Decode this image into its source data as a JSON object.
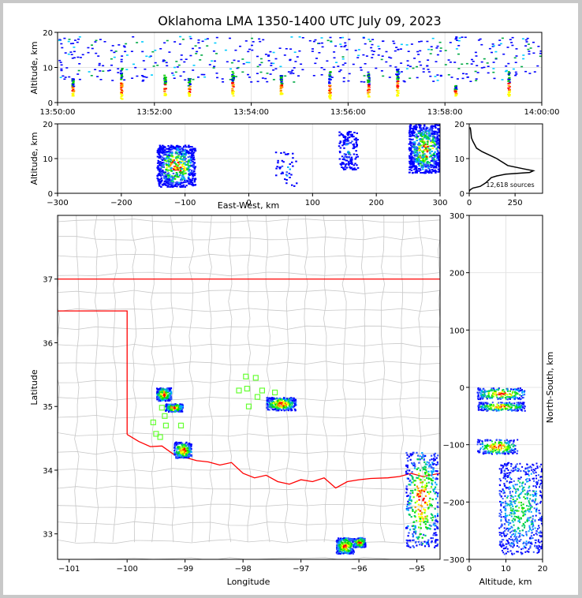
{
  "chart_data": [
    {
      "type": "scatter",
      "panel": "time-altitude",
      "title": "Oklahoma LMA 1350-1400 UTC July 09, 2023",
      "ylabel": "Altitude, km",
      "xlabel": "",
      "xlim": [
        "13:50:00",
        "14:00:00"
      ],
      "ylim": [
        0,
        20
      ],
      "x_ticks": [
        "13:50:00",
        "13:52:00",
        "13:54:00",
        "13:56:00",
        "13:58:00",
        "14:00:00"
      ],
      "y_ticks": [
        "0",
        "10",
        "20"
      ],
      "grid": true,
      "burst_times_min": [
        0.3,
        1.3,
        2.2,
        2.7,
        3.6,
        4.6,
        5.6,
        6.4,
        7.0,
        8.2,
        9.3
      ],
      "burst_base_km": [
        [
          2,
          7
        ],
        [
          1,
          10
        ],
        [
          2,
          8
        ],
        [
          2,
          7
        ],
        [
          2,
          9
        ],
        [
          2,
          8
        ],
        [
          1,
          9
        ],
        [
          1,
          9
        ],
        [
          2,
          10
        ],
        [
          2,
          5
        ],
        [
          2,
          9
        ]
      ]
    },
    {
      "type": "scatter",
      "panel": "east-west-altitude",
      "xlabel": "East-West, km",
      "ylabel": "Altitude, km",
      "xlim": [
        -300,
        300
      ],
      "ylim": [
        0,
        20
      ],
      "x_ticks": [
        "−300",
        "−200",
        "−100",
        "0",
        "100",
        "200",
        "300"
      ],
      "y_ticks": [
        "0",
        "10",
        "20"
      ],
      "grid": true,
      "clusters": [
        {
          "x_range": [
            -145,
            -85
          ],
          "z_range": [
            2,
            14
          ],
          "density": "high"
        },
        {
          "x_range": [
            40,
            75
          ],
          "z_range": [
            2,
            12
          ],
          "density": "low"
        },
        {
          "x_range": [
            140,
            170
          ],
          "z_range": [
            7,
            18
          ],
          "density": "medium"
        },
        {
          "x_range": [
            250,
            300
          ],
          "z_range": [
            6,
            20
          ],
          "density": "high"
        }
      ]
    },
    {
      "type": "line",
      "panel": "altitude-histogram",
      "xlim": [
        0,
        400
      ],
      "ylim": [
        0,
        20
      ],
      "x_ticks": [
        "0",
        "250"
      ],
      "y_ticks": [
        "0",
        "10",
        "20"
      ],
      "annotation": "12,618 sources",
      "profile": [
        [
          5,
          19
        ],
        [
          8,
          18
        ],
        [
          12,
          16
        ],
        [
          20,
          15
        ],
        [
          40,
          13
        ],
        [
          70,
          12
        ],
        [
          110,
          11
        ],
        [
          150,
          10
        ],
        [
          180,
          9
        ],
        [
          210,
          8
        ],
        [
          300,
          7
        ],
        [
          350,
          6.5
        ],
        [
          330,
          6
        ],
        [
          200,
          5.5
        ],
        [
          150,
          5
        ],
        [
          120,
          4.5
        ],
        [
          110,
          4
        ],
        [
          90,
          3
        ],
        [
          60,
          2
        ],
        [
          20,
          1.5
        ],
        [
          5,
          1
        ],
        [
          0,
          0.5
        ]
      ]
    },
    {
      "type": "map",
      "panel": "plan-view",
      "xlabel": "Longitude",
      "ylabel": "Latitude",
      "xlim": [
        -101.2,
        -94.6
      ],
      "ylim": [
        32.6,
        38.0
      ],
      "x_ticks": [
        "−101",
        "−100",
        "−99",
        "−98",
        "−97",
        "−96",
        "−95"
      ],
      "y_ticks": [
        "33",
        "34",
        "35",
        "36",
        "37"
      ],
      "stations": [
        [
          -97.95,
          35.47
        ],
        [
          -97.78,
          35.45
        ],
        [
          -98.07,
          35.25
        ],
        [
          -97.93,
          35.28
        ],
        [
          -97.67,
          35.25
        ],
        [
          -97.75,
          35.15
        ],
        [
          -97.45,
          35.22
        ],
        [
          -97.9,
          35.0
        ],
        [
          -99.4,
          34.98
        ],
        [
          -99.35,
          34.85
        ],
        [
          -99.55,
          34.75
        ],
        [
          -99.33,
          34.7
        ],
        [
          -99.07,
          34.7
        ],
        [
          -99.5,
          34.57
        ],
        [
          -99.43,
          34.52
        ]
      ],
      "clusters": [
        {
          "lon_range": [
            -99.5,
            -99.25
          ],
          "lat_range": [
            35.1,
            35.3
          ]
        },
        {
          "lon_range": [
            -99.35,
            -99.05
          ],
          "lat_range": [
            34.93,
            35.05
          ]
        },
        {
          "lon_range": [
            -99.2,
            -98.9
          ],
          "lat_range": [
            34.2,
            34.45
          ]
        },
        {
          "lon_range": [
            -97.6,
            -97.1
          ],
          "lat_range": [
            34.95,
            35.15
          ]
        },
        {
          "lon_range": [
            -96.4,
            -96.1
          ],
          "lat_range": [
            32.7,
            32.95
          ]
        },
        {
          "lon_range": [
            -96.1,
            -95.9
          ],
          "lat_range": [
            32.8,
            32.95
          ]
        },
        {
          "lon_range": [
            -95.2,
            -94.65
          ],
          "lat_range": [
            32.8,
            34.3
          ]
        }
      ]
    },
    {
      "type": "scatter",
      "panel": "altitude-north-south",
      "xlabel": "Altitude, km",
      "ylabel": "North-South, km",
      "xlim": [
        0,
        20
      ],
      "ylim": [
        -300,
        300
      ],
      "x_ticks": [
        "0",
        "10",
        "20"
      ],
      "y_ticks": [
        "−300",
        "−200",
        "−100",
        "0",
        "100",
        "200",
        "300"
      ],
      "grid": true,
      "clusters": [
        {
          "z_range": [
            2,
            15
          ],
          "y_range": [
            -20,
            0
          ]
        },
        {
          "z_range": [
            2,
            15
          ],
          "y_range": [
            -40,
            -25
          ]
        },
        {
          "z_range": [
            2,
            13
          ],
          "y_range": [
            -115,
            -90
          ]
        },
        {
          "z_range": [
            8,
            20
          ],
          "y_range": [
            -290,
            -130
          ]
        }
      ]
    }
  ]
}
